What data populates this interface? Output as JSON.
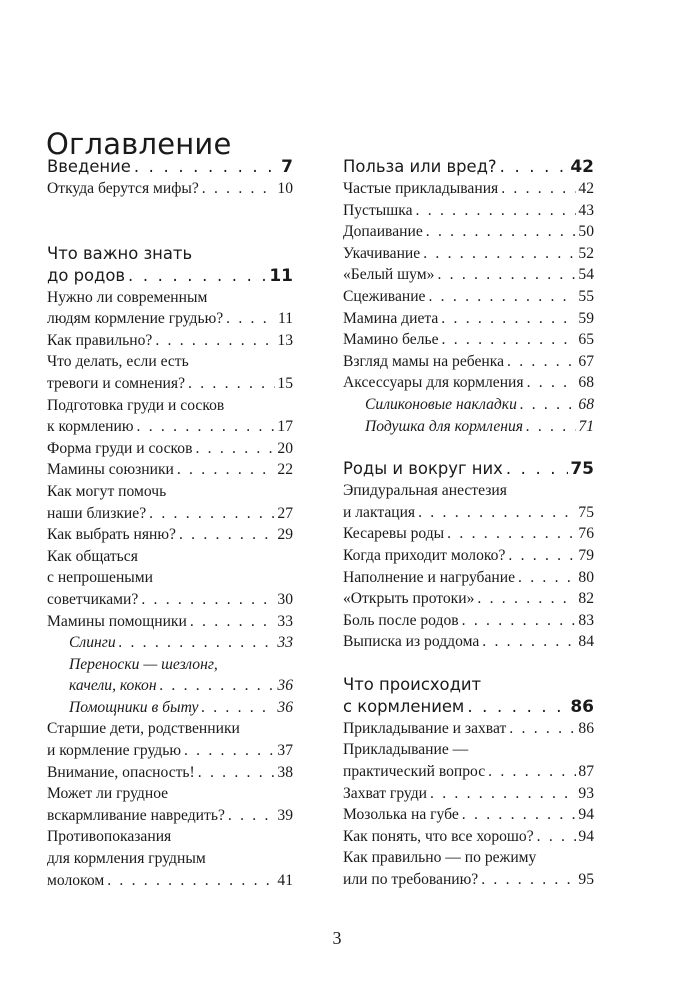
{
  "title": "Оглавление",
  "page_number": "3",
  "columns": [
    {
      "sections": [
        {
          "heading": {
            "lines": [
              "Введение"
            ],
            "page": "7"
          },
          "entries": [
            {
              "lines": [
                "Откуда берутся мифы?"
              ],
              "page": "10"
            }
          ]
        },
        {
          "heading": {
            "lines": [
              "Что важно знать",
              "до родов"
            ],
            "page": "11"
          },
          "entries": [
            {
              "lines": [
                "Нужно ли современным",
                "людям кормление грудью?"
              ],
              "page": "11"
            },
            {
              "lines": [
                "Как правильно?"
              ],
              "page": "13"
            },
            {
              "lines": [
                "Что делать, если есть",
                "тревоги и сомнения?"
              ],
              "page": "15"
            },
            {
              "lines": [
                "Подготовка груди и сосков",
                "к кормлению"
              ],
              "page": "17"
            },
            {
              "lines": [
                "Форма груди и сосков"
              ],
              "page": "20"
            },
            {
              "lines": [
                "Мамины союзники"
              ],
              "page": "22"
            },
            {
              "lines": [
                "Как могут помочь",
                "наши близкие?"
              ],
              "page": "27"
            },
            {
              "lines": [
                "Как выбрать няню?"
              ],
              "page": "29"
            },
            {
              "lines": [
                "Как общаться",
                "с непрошеными",
                "советчиками?"
              ],
              "page": "30"
            },
            {
              "lines": [
                "Мамины помощники"
              ],
              "page": "33"
            },
            {
              "lines": [
                "Слинги"
              ],
              "page": "33",
              "italic": true
            },
            {
              "lines": [
                "Переноски — шезлонг,",
                "качели, кокон"
              ],
              "page": "36",
              "italic": true
            },
            {
              "lines": [
                "Помощники в быту"
              ],
              "page": "36",
              "italic": true
            },
            {
              "lines": [
                "Старшие дети, родственники",
                "и кормление грудью"
              ],
              "page": "37"
            },
            {
              "lines": [
                "Внимание, опасность!"
              ],
              "page": "38"
            },
            {
              "lines": [
                "Может ли грудное",
                "вскармливание навредить?"
              ],
              "page": "39"
            },
            {
              "lines": [
                "Противопоказания",
                "для кормления грудным",
                "молоком"
              ],
              "page": "41"
            }
          ]
        }
      ]
    },
    {
      "sections": [
        {
          "heading": {
            "lines": [
              "Польза или вред?"
            ],
            "page": "42"
          },
          "entries": [
            {
              "lines": [
                "Частые прикладывания"
              ],
              "page": "42"
            },
            {
              "lines": [
                "Пустышка"
              ],
              "page": "43"
            },
            {
              "lines": [
                "Допаивание"
              ],
              "page": "50"
            },
            {
              "lines": [
                "Укачивание"
              ],
              "page": "52"
            },
            {
              "lines": [
                "«Белый шум»"
              ],
              "page": "54"
            },
            {
              "lines": [
                "Сцеживание"
              ],
              "page": "55"
            },
            {
              "lines": [
                "Мамина диета"
              ],
              "page": "59"
            },
            {
              "lines": [
                "Мамино белье"
              ],
              "page": "65"
            },
            {
              "lines": [
                "Взгляд мамы на ребенка"
              ],
              "page": "67"
            },
            {
              "lines": [
                "Аксессуары для кормления"
              ],
              "page": "68"
            },
            {
              "lines": [
                "Силиконовые накладки"
              ],
              "page": "68",
              "italic": true
            },
            {
              "lines": [
                "Подушка для кормления"
              ],
              "page": "71",
              "italic": true
            }
          ]
        },
        {
          "heading": {
            "lines": [
              "Роды и вокруг них"
            ],
            "page": "75"
          },
          "entries": [
            {
              "lines": [
                "Эпидуральная анестезия",
                "и лактация"
              ],
              "page": "75"
            },
            {
              "lines": [
                "Кесаревы роды"
              ],
              "page": "76"
            },
            {
              "lines": [
                "Когда приходит молоко?"
              ],
              "page": "79"
            },
            {
              "lines": [
                "Наполнение и нагрубание"
              ],
              "page": "80"
            },
            {
              "lines": [
                "«Открыть протоки»"
              ],
              "page": "82"
            },
            {
              "lines": [
                "Боль после родов"
              ],
              "page": "83"
            },
            {
              "lines": [
                "Выписка из роддома"
              ],
              "page": "84"
            }
          ]
        },
        {
          "heading": {
            "lines": [
              "Что происходит",
              "с кормлением"
            ],
            "page": "86"
          },
          "entries": [
            {
              "lines": [
                "Прикладывание и захват"
              ],
              "page": "86"
            },
            {
              "lines": [
                "Прикладывание —",
                "практический вопрос"
              ],
              "page": "87"
            },
            {
              "lines": [
                "Захват груди"
              ],
              "page": "93"
            },
            {
              "lines": [
                "Мозолька на губе"
              ],
              "page": "94"
            },
            {
              "lines": [
                "Как понять, что все хорошо?"
              ],
              "page": "94"
            },
            {
              "lines": [
                "Как правильно — по режиму",
                "или по требованию?"
              ],
              "page": "95"
            }
          ]
        }
      ]
    }
  ]
}
